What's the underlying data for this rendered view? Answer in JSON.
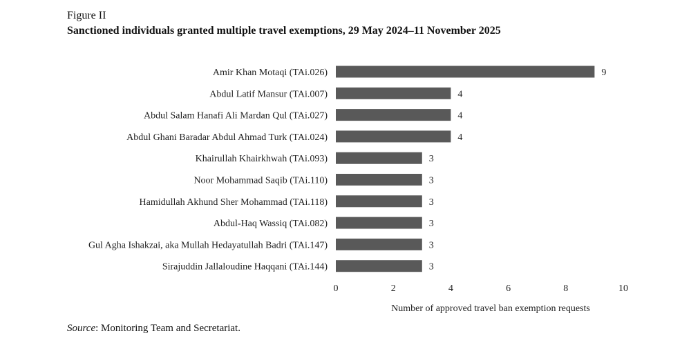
{
  "figure": {
    "label": "Figure II",
    "title": "Sanctioned individuals granted multiple travel exemptions, 29 May 2024–11 November 2025"
  },
  "source": {
    "prefix": "Source",
    "text": ": Monitoring Team and Secretariat."
  },
  "chart_data": {
    "type": "bar",
    "orientation": "horizontal",
    "categories": [
      "Amir Khan Motaqi (TAi.026)",
      "Abdul Latif Mansur (TAi.007)",
      "Abdul Salam Hanafi Ali Mardan Qul (TAi.027)",
      "Abdul Ghani Baradar Abdul Ahmad Turk (TAi.024)",
      "Khairullah Khairkhwah (TAi.093)",
      "Noor Mohammad Saqib (TAi.110)",
      "Hamidullah Akhund Sher Mohammad (TAi.118)",
      "Abdul-Haq Wassiq (TAi.082)",
      "Gul Agha Ishakzai, aka Mullah Hedayatullah Badri (TAi.147)",
      "Sirajuddin Jallaloudine Haqqani (TAi.144)"
    ],
    "values": [
      9,
      4,
      4,
      4,
      3,
      3,
      3,
      3,
      3,
      3
    ],
    "xlabel": "Number of approved travel ban exemption requests",
    "ylabel": "",
    "xlim": [
      0,
      10
    ],
    "xticks": [
      0,
      2,
      4,
      6,
      8,
      10
    ],
    "grid": false,
    "bar_color": "#595959",
    "data_labels": true
  }
}
